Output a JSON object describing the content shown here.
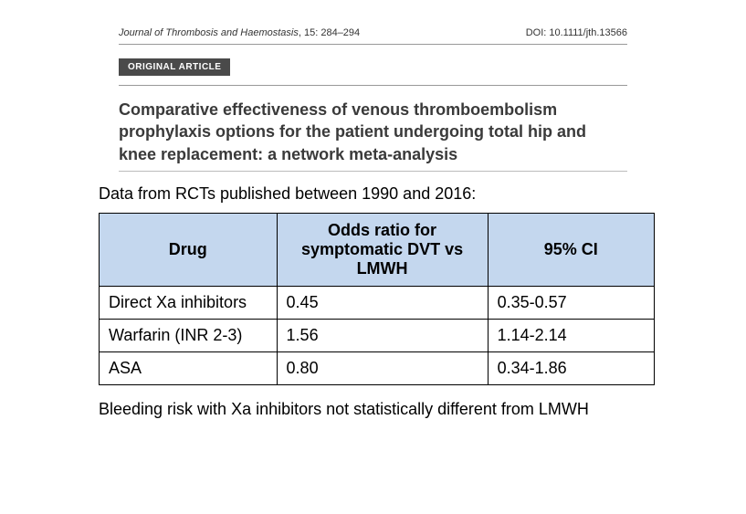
{
  "journal": {
    "name": "Journal of Thrombosis and Haemostasis",
    "issue": ", 15: 284–294",
    "doi": "DOI: 10.1111/jth.13566"
  },
  "badge": "ORIGINAL ARTICLE",
  "title": "Comparative effectiveness of venous thromboembolism prophylaxis options for the patient undergoing total hip and knee replacement: a network meta-analysis",
  "intro": "Data from RCTs published between 1990 and 2016:",
  "table": {
    "type": "table",
    "header_bg": "#c4d7ee",
    "border_color": "#000000",
    "font_size": 18,
    "columns": [
      {
        "label": "Drug",
        "width": "32%",
        "align": "center"
      },
      {
        "label": "Odds ratio for symptomatic DVT vs LMWH",
        "width": "38%",
        "align": "center"
      },
      {
        "label": "95% CI",
        "width": "30%",
        "align": "center"
      }
    ],
    "rows": [
      {
        "drug": "Direct Xa inhibitors",
        "or": "0.45",
        "ci": "0.35-0.57"
      },
      {
        "drug": "Warfarin (INR 2-3)",
        "or": "1.56",
        "ci": "1.14-2.14"
      },
      {
        "drug": "ASA",
        "or": "0.80",
        "ci": "0.34-1.86"
      }
    ]
  },
  "footer": "Bleeding risk with Xa inhibitors not statistically different from LMWH",
  "colors": {
    "background": "#ffffff",
    "badge_bg": "#4a4a4a",
    "badge_text": "#ffffff",
    "title_text": "#3a3a3a",
    "body_text": "#000000",
    "hr": "#999999"
  }
}
